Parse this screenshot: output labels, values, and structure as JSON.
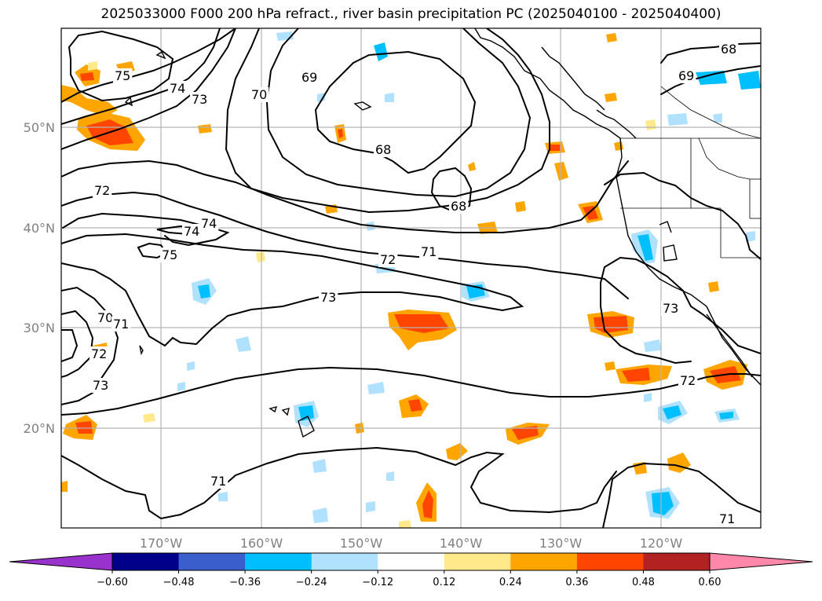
{
  "title": "2025033000 F000 200 hPa refract., river basin precipitation PC (2025040100 - 2025040400)",
  "map": {
    "lat_labels": [
      "50°N",
      "40°N",
      "30°N",
      "20°N"
    ],
    "lon_labels": [
      "170°W",
      "160°W",
      "150°W",
      "140°W",
      "130°W",
      "120°W"
    ],
    "contour_labels": [
      "75",
      "74",
      "73",
      "70",
      "69",
      "68",
      "68",
      "68",
      "69",
      "72",
      "74",
      "74",
      "75",
      "72",
      "71",
      "73",
      "70",
      "71",
      "72",
      "73",
      "73",
      "72",
      "71",
      "71"
    ]
  },
  "colorbar": {
    "ticks": [
      "−0.60",
      "−0.48",
      "−0.36",
      "−0.24",
      "−0.12",
      "0.12",
      "0.24",
      "0.36",
      "0.48",
      "0.60"
    ],
    "colors": [
      "#9932cc",
      "#00008b",
      "#3a5fcd",
      "#00bfff",
      "#b0e2ff",
      "#ffffff",
      "#ffe98a",
      "#ffa500",
      "#ff4500",
      "#b22222",
      "#ff88aa"
    ]
  }
}
